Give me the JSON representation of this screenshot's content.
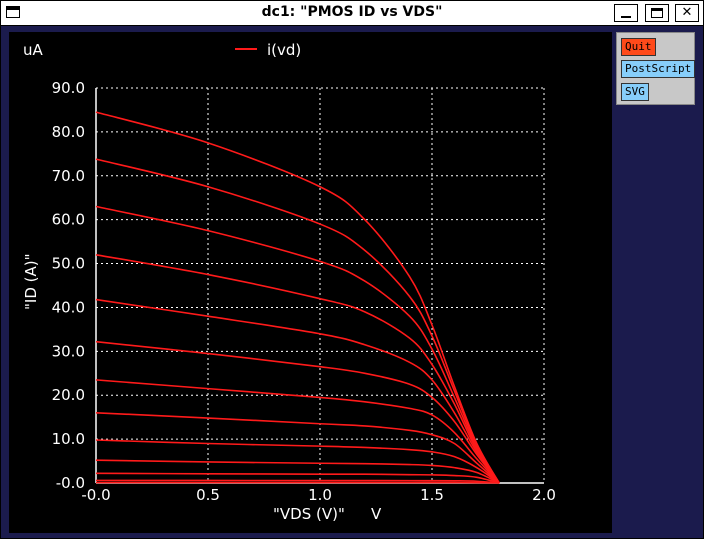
{
  "window": {
    "title": "dc1: \"PMOS ID vs VDS\"",
    "icons": [
      "window-menu-icon",
      "minimize-icon",
      "maximize-icon",
      "close-icon"
    ],
    "close_glyph": "✕"
  },
  "side_panel": {
    "buttons": [
      {
        "label": "Quit",
        "color": "#ff4a1a"
      },
      {
        "label": "PostScript",
        "color": "#87cefa"
      },
      {
        "label": "SVG",
        "color": "#87cefa"
      }
    ]
  },
  "chart_data": {
    "type": "line",
    "title": "",
    "xlabel": "\"VDS (V)\"",
    "xunit": "V",
    "ylabel": "\"ID (A)\"",
    "yunit": "uA",
    "xlim": [
      0.0,
      2.0
    ],
    "ylim": [
      0.0,
      90.0
    ],
    "xticks": [
      0.0,
      0.5,
      1.0,
      1.5,
      2.0
    ],
    "xtick_labels": [
      "-0.0",
      "0.5",
      "1.0",
      "1.5",
      "2.0"
    ],
    "yticks": [
      0,
      10,
      20,
      30,
      40,
      50,
      60,
      70,
      80,
      90
    ],
    "ytick_labels": [
      "-0.0",
      "10.0",
      "20.0",
      "30.0",
      "40.0",
      "50.0",
      "60.0",
      "70.0",
      "80.0",
      "90.0"
    ],
    "grid": true,
    "legend": {
      "entries": [
        "i(vd)"
      ],
      "placement": "top-center"
    },
    "line_color": "#ff1a1a",
    "series": [
      {
        "name": "i(vd)",
        "x": [
          0.0,
          0.5,
          1.0,
          1.2,
          1.4,
          1.5,
          1.6,
          1.7,
          1.8
        ],
        "y": [
          84.5,
          77.5,
          67.5,
          60.0,
          47.0,
          36.0,
          22.0,
          9.0,
          0.0
        ]
      },
      {
        "x": [
          0.0,
          0.5,
          1.0,
          1.2,
          1.4,
          1.5,
          1.6,
          1.7,
          1.8
        ],
        "y": [
          73.8,
          67.5,
          59.0,
          53.0,
          42.5,
          33.5,
          21.0,
          8.5,
          0.0
        ]
      },
      {
        "x": [
          0.0,
          0.5,
          1.0,
          1.2,
          1.4,
          1.5,
          1.6,
          1.7,
          1.8
        ],
        "y": [
          63.0,
          57.5,
          50.5,
          46.0,
          38.0,
          30.5,
          19.5,
          8.0,
          0.0
        ]
      },
      {
        "x": [
          0.0,
          0.5,
          1.0,
          1.2,
          1.4,
          1.5,
          1.6,
          1.7,
          1.8
        ],
        "y": [
          52.0,
          47.5,
          42.0,
          39.0,
          33.0,
          27.0,
          18.0,
          7.5,
          0.0
        ]
      },
      {
        "x": [
          0.0,
          0.5,
          1.0,
          1.2,
          1.4,
          1.5,
          1.6,
          1.7,
          1.8
        ],
        "y": [
          41.8,
          38.0,
          34.0,
          31.5,
          27.5,
          23.5,
          16.0,
          7.0,
          0.0
        ]
      },
      {
        "x": [
          0.0,
          0.5,
          1.0,
          1.2,
          1.4,
          1.5,
          1.6,
          1.7,
          1.8
        ],
        "y": [
          32.2,
          29.5,
          26.5,
          25.0,
          22.5,
          19.5,
          14.0,
          6.5,
          0.0
        ]
      },
      {
        "x": [
          0.0,
          0.5,
          1.0,
          1.2,
          1.4,
          1.5,
          1.6,
          1.7,
          1.8
        ],
        "y": [
          23.5,
          21.5,
          19.5,
          18.5,
          17.0,
          15.5,
          11.5,
          5.5,
          0.0
        ]
      },
      {
        "x": [
          0.0,
          0.5,
          1.0,
          1.2,
          1.4,
          1.5,
          1.6,
          1.7,
          1.8
        ],
        "y": [
          16.0,
          14.8,
          13.5,
          13.0,
          12.0,
          11.0,
          9.0,
          4.5,
          0.0
        ]
      },
      {
        "x": [
          0.0,
          0.5,
          1.0,
          1.2,
          1.4,
          1.5,
          1.6,
          1.7,
          1.8
        ],
        "y": [
          9.8,
          9.0,
          8.4,
          8.1,
          7.6,
          7.1,
          6.0,
          3.5,
          0.0
        ]
      },
      {
        "x": [
          0.0,
          0.5,
          1.0,
          1.2,
          1.4,
          1.5,
          1.6,
          1.7,
          1.8
        ],
        "y": [
          5.2,
          4.8,
          4.5,
          4.4,
          4.2,
          4.0,
          3.5,
          2.4,
          0.0
        ]
      },
      {
        "x": [
          0.0,
          0.5,
          1.0,
          1.2,
          1.4,
          1.5,
          1.6,
          1.7,
          1.8
        ],
        "y": [
          2.2,
          2.1,
          2.0,
          2.0,
          1.9,
          1.85,
          1.7,
          1.3,
          0.0
        ]
      },
      {
        "x": [
          0.0,
          0.5,
          1.0,
          1.2,
          1.4,
          1.5,
          1.6,
          1.7,
          1.8
        ],
        "y": [
          0.6,
          0.58,
          0.55,
          0.55,
          0.54,
          0.53,
          0.5,
          0.4,
          0.0
        ]
      },
      {
        "x": [
          0.0,
          0.5,
          1.0,
          1.2,
          1.4,
          1.5,
          1.6,
          1.7,
          1.8
        ],
        "y": [
          0.1,
          0.1,
          0.1,
          0.1,
          0.1,
          0.1,
          0.09,
          0.07,
          0.0
        ]
      }
    ]
  }
}
